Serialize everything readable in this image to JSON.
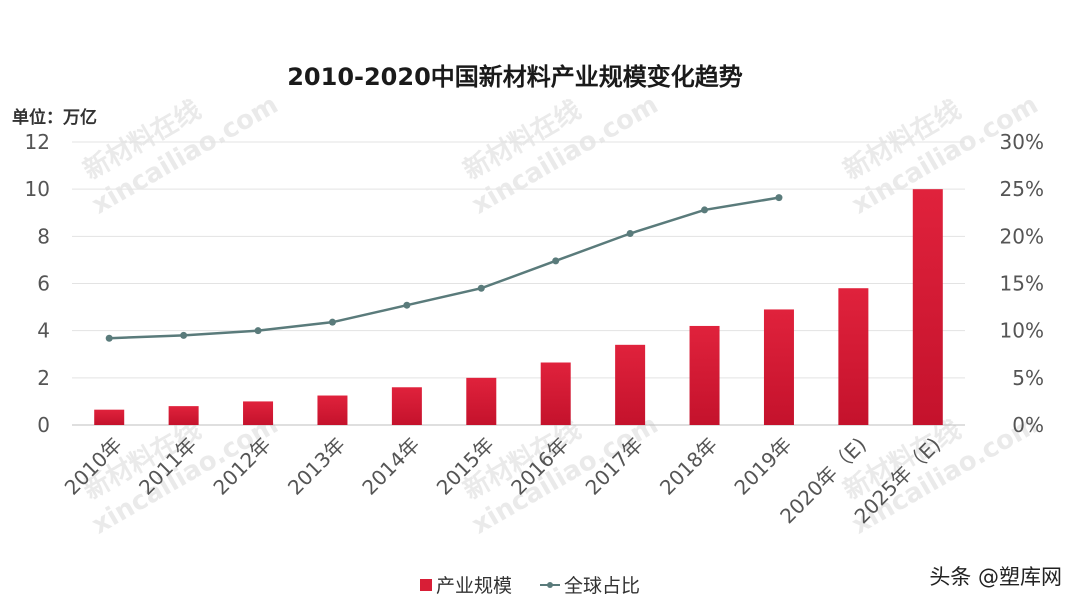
{
  "chart_data": {
    "type": "bar",
    "title": "2010-2020中国新材料产业规模变化趋势",
    "unit_label": "单位：万亿",
    "categories": [
      "2010年",
      "2011年",
      "2012年",
      "2013年",
      "2014年",
      "2015年",
      "2016年",
      "2017年",
      "2018年",
      "2019年",
      "2020年（E)",
      "2025年（E)"
    ],
    "series": [
      {
        "name": "产业规模",
        "type": "bar",
        "axis": "left",
        "color": "#d81e36",
        "values": [
          0.65,
          0.8,
          1.0,
          1.25,
          1.6,
          2.0,
          2.65,
          3.4,
          4.2,
          4.9,
          5.8,
          10.0
        ]
      },
      {
        "name": "全球占比",
        "type": "line",
        "axis": "right",
        "color": "#5a7b7b",
        "values": [
          9.2,
          9.5,
          10.0,
          10.9,
          12.7,
          14.5,
          17.4,
          20.3,
          22.8,
          24.1,
          null,
          null
        ]
      }
    ],
    "y_left": {
      "min": 0,
      "max": 12,
      "ticks": [
        "0",
        "2",
        "4",
        "6",
        "8",
        "10",
        "12"
      ]
    },
    "y_right": {
      "min": 0,
      "max": 30,
      "ticks": [
        "0%",
        "5%",
        "10%",
        "15%",
        "20%",
        "25%",
        "30%"
      ]
    },
    "grid": true,
    "legend_position": "bottom"
  },
  "watermark": {
    "text_cn": "新材料在线",
    "text_en": "xincailiao.com",
    "color": "#d9d9d9"
  },
  "branding": {
    "text": "头条 @塑库网"
  }
}
